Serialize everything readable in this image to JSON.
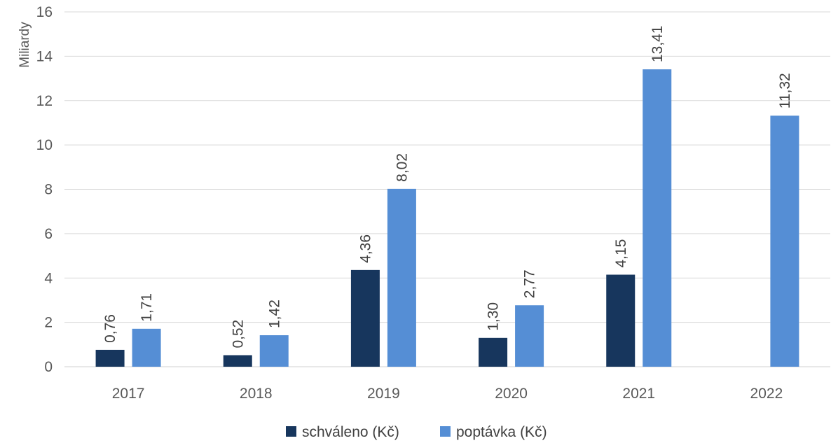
{
  "chart_data": {
    "type": "bar",
    "ylabel": "Miliardy",
    "xlabel": "",
    "ylim": [
      0,
      16
    ],
    "yticks": [
      0,
      2,
      4,
      6,
      8,
      10,
      12,
      14,
      16
    ],
    "grid": true,
    "legend_position": "bottom",
    "categories": [
      "2017",
      "2018",
      "2019",
      "2020",
      "2021",
      "2022"
    ],
    "series": [
      {
        "name": "schváleno (Kč)",
        "color": "#17365d",
        "values": [
          0.76,
          0.52,
          4.36,
          1.3,
          4.15,
          null
        ],
        "labels": [
          "0,76",
          "0,52",
          "4,36",
          "1,30",
          "4,15",
          null
        ]
      },
      {
        "name": "poptávka (Kč)",
        "color": "#558ed5",
        "values": [
          1.71,
          1.42,
          8.02,
          2.77,
          13.41,
          11.32
        ],
        "labels": [
          "1,71",
          "1,42",
          "8,02",
          "2,77",
          "13,41",
          "11,32"
        ]
      }
    ]
  }
}
